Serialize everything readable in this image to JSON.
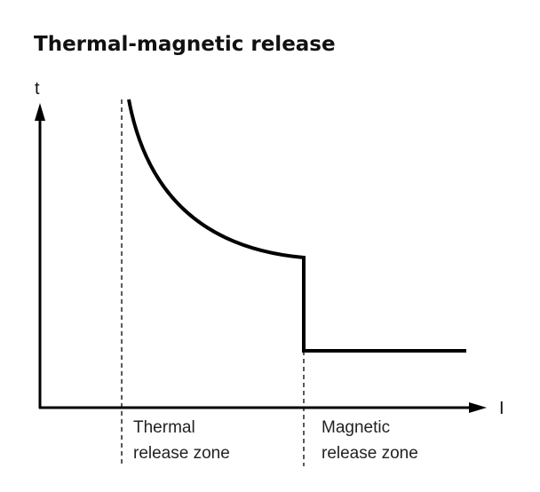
{
  "title": "Thermal-magnetic release",
  "axes": {
    "y_label": "t",
    "x_label": "I"
  },
  "zones": [
    {
      "lines": [
        "Thermal",
        "release zone"
      ]
    },
    {
      "lines": [
        "Magnetic",
        "release zone"
      ]
    }
  ]
}
